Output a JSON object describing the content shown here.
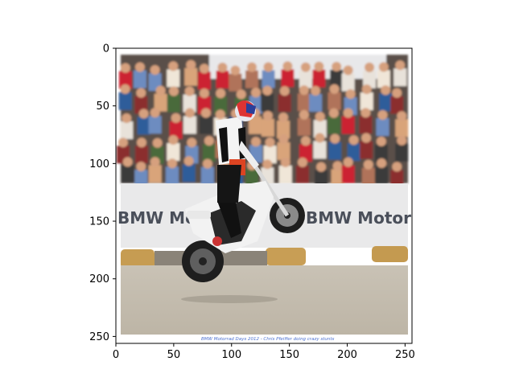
{
  "axes": {
    "x_ticks": [
      0,
      50,
      100,
      150,
      200,
      250
    ],
    "y_ticks": [
      0,
      50,
      100,
      150,
      200,
      250
    ],
    "xlim": [
      0,
      256
    ],
    "ylim": [
      256,
      0
    ]
  },
  "photo": {
    "banner_text_left": "BMW Motorrad",
    "banner_text_right": "BMW Motorrad",
    "caption": "BMW Motorrad Days 2012 - Chris Pfeiffer doing crazy stunts"
  }
}
